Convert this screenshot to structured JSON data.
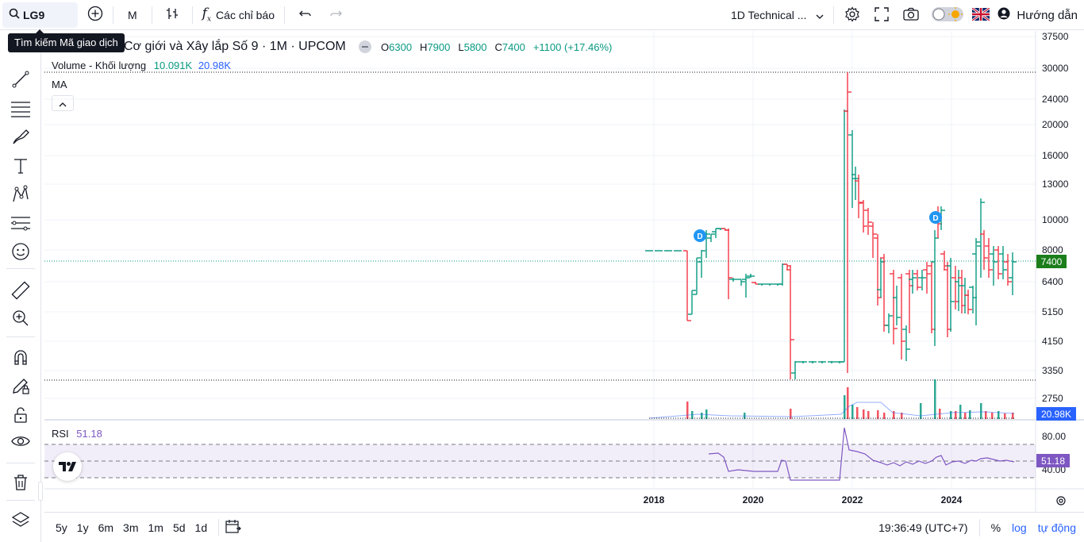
{
  "toolbar": {
    "symbol": "LG9",
    "interval": "M",
    "indicators_label": "Các chỉ báo",
    "layout_name": "1D Technical ...",
    "help_label": "Hướng dẫn"
  },
  "tooltip": "Tìm kiếm Mã giao dịch",
  "legend": {
    "title": "Cơ giới và Xây lắp Số 9 · 1M · UPCOM",
    "o_label": "O",
    "o": "6300",
    "h_label": "H",
    "h": "7900",
    "l_label": "L",
    "l": "5800",
    "c_label": "C",
    "c": "7400",
    "change": "+1100 (+17.46%)"
  },
  "volume_legend": {
    "label": "Volume - Khối lượng",
    "v1": "10.091K",
    "v2": "20.98K"
  },
  "ma_legend": "MA",
  "rsi_legend": {
    "label": "RSI",
    "value": "51.18"
  },
  "price_axis": [
    "37500",
    "30000",
    "24000",
    "20000",
    "16000",
    "13000",
    "10000",
    "8000",
    "6400",
    "5150",
    "4150",
    "3350",
    "2750"
  ],
  "price_label": "7400",
  "volume_label": "20.98K",
  "rsi_axis": [
    "80.00",
    "40.00"
  ],
  "rsi_label": "51.18",
  "time_axis": [
    "2018",
    "2020",
    "2022",
    "2024"
  ],
  "bottom": {
    "ranges": [
      "5y",
      "1y",
      "6m",
      "3m",
      "1m",
      "5d",
      "1d"
    ],
    "clock": "19:36:49 (UTC+7)",
    "percent": "%",
    "log": "log",
    "auto": "tự động"
  },
  "dividend_marker": "D",
  "colors": {
    "up": "#089981",
    "down": "#f23645",
    "accent": "#2962ff",
    "rsi": "#7e57c2",
    "last_price_bg": "#1b7e1b"
  },
  "chart_data": {
    "type": "bar",
    "title": "Cơ giới và Xây lắp Số 9 · 1M · UPCOM",
    "x_range": [
      "2017-11",
      "2025-03"
    ],
    "y_scale": "log",
    "y_range": [
      2750,
      37500
    ],
    "last_price": 7400,
    "rsi_last": 51.18,
    "rsi_bands": [
      30,
      70
    ]
  }
}
